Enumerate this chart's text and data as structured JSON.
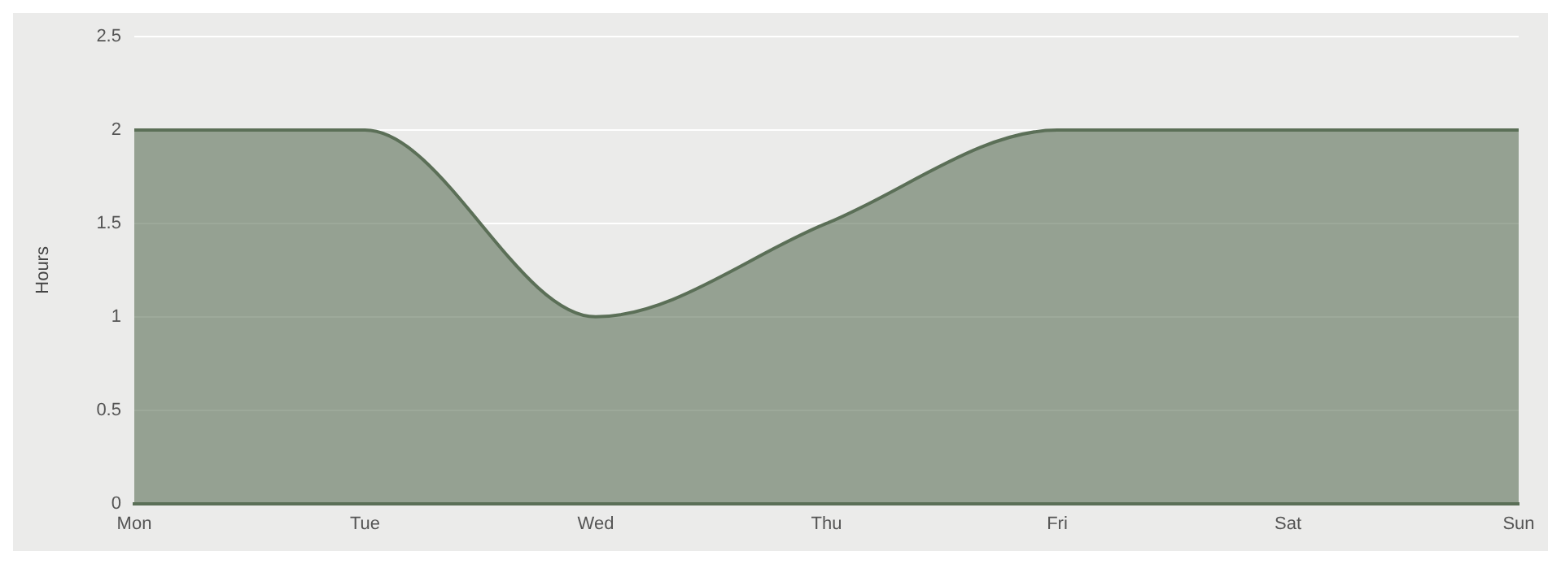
{
  "chart_data": {
    "type": "area",
    "ylabel": "Hours",
    "categories": [
      "Mon",
      "Tue",
      "Wed",
      "Thu",
      "Fri",
      "Sat",
      "Sun"
    ],
    "series": [
      {
        "color": "#5b6f57",
        "values": [
          2,
          2,
          1,
          1.5,
          2,
          2,
          2
        ]
      }
    ],
    "ylim": [
      0,
      2.5
    ],
    "yticks": [
      0,
      0.5,
      1,
      1.5,
      2,
      2.5
    ],
    "grid": "y",
    "legend": false
  }
}
